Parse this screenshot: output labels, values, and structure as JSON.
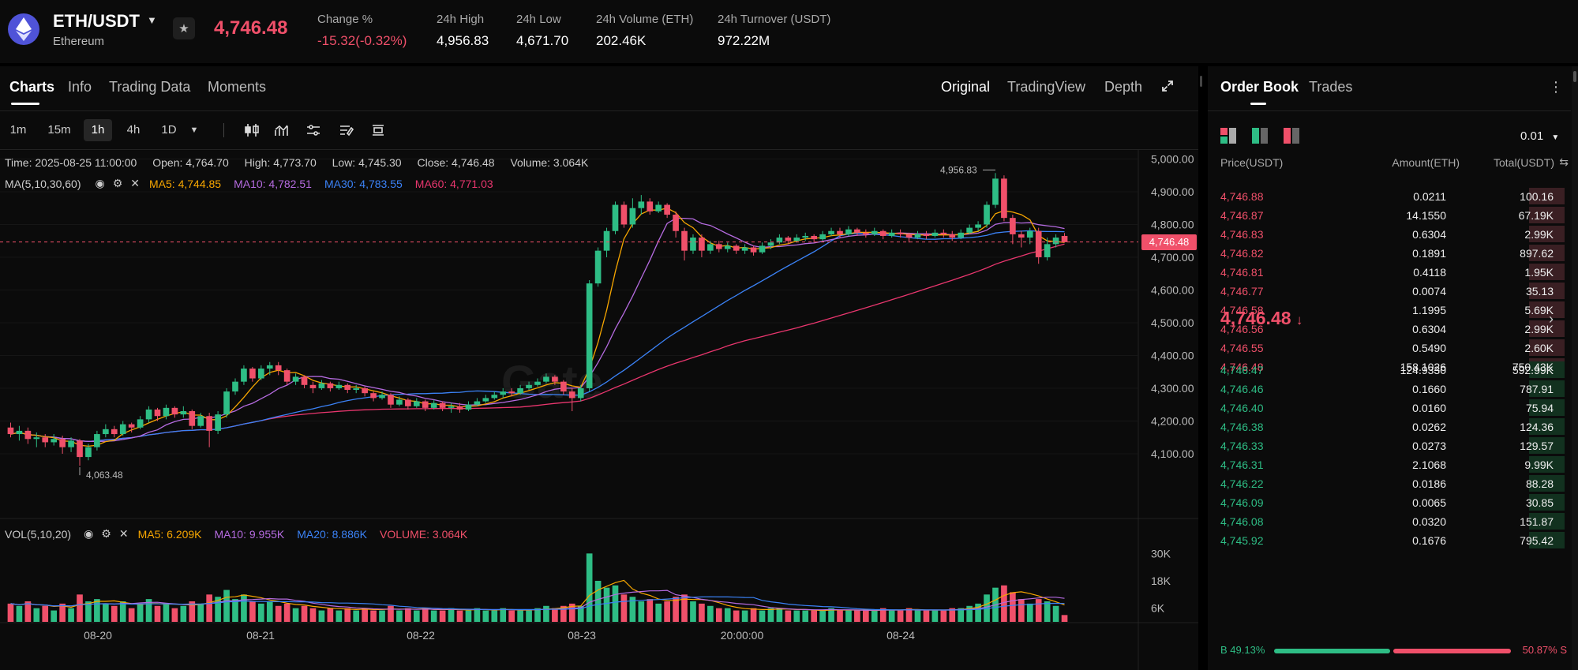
{
  "header": {
    "pair": "ETH/USDT",
    "name": "Ethereum",
    "price": "4,746.48",
    "stats": [
      {
        "label": "Change %",
        "value": "-15.32(-0.32%)",
        "tone": "red"
      },
      {
        "label": "24h High",
        "value": "4,956.83",
        "tone": "white"
      },
      {
        "label": "24h Low",
        "value": "4,671.70",
        "tone": "white"
      },
      {
        "label": "24h Volume (ETH)",
        "value": "202.46K",
        "tone": "white"
      },
      {
        "label": "24h Turnover (USDT)",
        "value": "972.22M",
        "tone": "white"
      }
    ]
  },
  "chart_tabs": [
    "Charts",
    "Info",
    "Trading Data",
    "Moments"
  ],
  "view_tabs": [
    "Original",
    "TradingView",
    "Depth"
  ],
  "timeframes": [
    "1m",
    "15m",
    "1h",
    "4h",
    "1D"
  ],
  "active_timeframe": "1h",
  "icons": {
    "pair_caret": "caret-down-icon",
    "favorite": "star-icon",
    "fullscreen": "expand-icon",
    "timeframe_more": "caret-down-icon",
    "tools": [
      "candlestick-icon",
      "indicator-icon",
      "settings-sliders-icon",
      "drawing-icon",
      "layout-icon"
    ],
    "ob_menu": "more-vertical-icon",
    "ob_views": [
      "both-sides-icon",
      "bids-only-icon",
      "asks-only-icon"
    ]
  },
  "ohlc": {
    "time": "Time: 2025-08-25 11:00:00",
    "open": "Open: 4,764.70",
    "high": "High: 4,773.70",
    "low": "Low: 4,745.30",
    "close": "Close: 4,746.48",
    "volume": "Volume: 3.064K"
  },
  "ma_legend": {
    "title": "MA(5,10,30,60)",
    "items": [
      {
        "text": "MA5: 4,744.85",
        "color": "#f7a600"
      },
      {
        "text": "MA10: 4,782.51",
        "color": "#b56be0"
      },
      {
        "text": "MA30: 4,783.55",
        "color": "#3b82f6"
      },
      {
        "text": "MA60: 4,771.03",
        "color": "#e9366e"
      }
    ]
  },
  "vol_legend": {
    "title": "VOL(5,10,20)",
    "items": [
      {
        "text": "MA5: 6.209K",
        "color": "#f7a600"
      },
      {
        "text": "MA10: 9.955K",
        "color": "#b56be0"
      },
      {
        "text": "MA20: 8.886K",
        "color": "#3b82f6"
      },
      {
        "text": "VOLUME: 3.064K",
        "color": "#f0506a"
      }
    ]
  },
  "watermark": "Gate",
  "chart_data": {
    "type": "candlestick",
    "interval": "1h",
    "price_axis": {
      "ticks": [
        "5,000.00",
        "4,900.00",
        "4,800.00",
        "4,700.00",
        "4,600.00",
        "4,500.00",
        "4,400.00",
        "4,300.00",
        "4,200.00",
        "4,100.00"
      ],
      "range": [
        4030,
        5030
      ]
    },
    "volume_axis": {
      "ticks": [
        "30K",
        "18K",
        "6K"
      ],
      "range": [
        0,
        36000
      ]
    },
    "x_labels": [
      "08-20",
      "08-21",
      "08-22",
      "08-23",
      "20:00:00",
      "08-24"
    ],
    "current_price": "4,746.48",
    "current_price_value": 4746.48,
    "high_marker": {
      "text": "4,956.83",
      "value": 4956.83
    },
    "low_marker": {
      "text": "4,063.48",
      "value": 4063.48
    },
    "candles": [
      [
        4180,
        4160,
        4150,
        4195,
        8
      ],
      [
        4160,
        4170,
        4140,
        4185,
        7
      ],
      [
        4170,
        4145,
        4130,
        4180,
        9
      ],
      [
        4145,
        4150,
        4120,
        4165,
        6
      ],
      [
        4150,
        4135,
        4120,
        4160,
        7
      ],
      [
        4135,
        4145,
        4125,
        4160,
        5
      ],
      [
        4145,
        4120,
        4100,
        4155,
        8
      ],
      [
        4120,
        4140,
        4105,
        4150,
        6
      ],
      [
        4140,
        4090,
        4063,
        4145,
        12
      ],
      [
        4090,
        4120,
        4080,
        4130,
        9
      ],
      [
        4120,
        4160,
        4110,
        4170,
        10
      ],
      [
        4160,
        4175,
        4150,
        4190,
        8
      ],
      [
        4175,
        4160,
        4150,
        4185,
        7
      ],
      [
        4160,
        4190,
        4155,
        4200,
        9
      ],
      [
        4190,
        4180,
        4165,
        4195,
        6
      ],
      [
        4180,
        4205,
        4175,
        4215,
        8
      ],
      [
        4205,
        4235,
        4195,
        4245,
        10
      ],
      [
        4235,
        4215,
        4200,
        4240,
        7
      ],
      [
        4215,
        4240,
        4205,
        4250,
        8
      ],
      [
        4240,
        4220,
        4210,
        4245,
        6
      ],
      [
        4220,
        4230,
        4210,
        4245,
        7
      ],
      [
        4230,
        4185,
        4175,
        4235,
        9
      ],
      [
        4185,
        4215,
        4180,
        4225,
        8
      ],
      [
        4215,
        4170,
        4120,
        4225,
        12
      ],
      [
        4170,
        4220,
        4160,
        4230,
        11
      ],
      [
        4220,
        4290,
        4210,
        4300,
        14
      ],
      [
        4290,
        4320,
        4280,
        4330,
        10
      ],
      [
        4320,
        4360,
        4310,
        4370,
        12
      ],
      [
        4360,
        4330,
        4320,
        4365,
        9
      ],
      [
        4330,
        4360,
        4325,
        4370,
        8
      ],
      [
        4360,
        4370,
        4340,
        4380,
        9
      ],
      [
        4370,
        4355,
        4340,
        4380,
        7
      ],
      [
        4355,
        4320,
        4310,
        4360,
        8
      ],
      [
        4320,
        4335,
        4310,
        4345,
        6
      ],
      [
        4335,
        4310,
        4300,
        4340,
        7
      ],
      [
        4310,
        4300,
        4285,
        4320,
        6
      ],
      [
        4300,
        4315,
        4295,
        4325,
        5
      ],
      [
        4315,
        4300,
        4290,
        4320,
        6
      ],
      [
        4300,
        4310,
        4295,
        4320,
        5
      ],
      [
        4310,
        4295,
        4285,
        4315,
        6
      ],
      [
        4295,
        4300,
        4285,
        4310,
        5
      ],
      [
        4300,
        4285,
        4275,
        4305,
        6
      ],
      [
        4285,
        4270,
        4260,
        4290,
        5
      ],
      [
        4270,
        4280,
        4265,
        4290,
        5
      ],
      [
        4280,
        4250,
        4240,
        4285,
        7
      ],
      [
        4250,
        4265,
        4245,
        4275,
        5
      ],
      [
        4265,
        4245,
        4235,
        4270,
        6
      ],
      [
        4245,
        4260,
        4240,
        4270,
        5
      ],
      [
        4260,
        4240,
        4230,
        4265,
        6
      ],
      [
        4240,
        4255,
        4235,
        4265,
        5
      ],
      [
        4255,
        4240,
        4230,
        4260,
        5
      ],
      [
        4240,
        4245,
        4225,
        4255,
        6
      ],
      [
        4245,
        4235,
        4225,
        4255,
        5
      ],
      [
        4235,
        4250,
        4230,
        4260,
        5
      ],
      [
        4250,
        4260,
        4245,
        4270,
        6
      ],
      [
        4260,
        4270,
        4255,
        4280,
        5
      ],
      [
        4270,
        4280,
        4265,
        4290,
        5
      ],
      [
        4280,
        4290,
        4270,
        4300,
        6
      ],
      [
        4290,
        4285,
        4275,
        4300,
        5
      ],
      [
        4285,
        4300,
        4280,
        4310,
        5
      ],
      [
        4300,
        4310,
        4295,
        4320,
        5
      ],
      [
        4310,
        4320,
        4305,
        4330,
        6
      ],
      [
        4320,
        4335,
        4315,
        4345,
        7
      ],
      [
        4335,
        4320,
        4310,
        4340,
        6
      ],
      [
        4320,
        4290,
        4280,
        4325,
        7
      ],
      [
        4290,
        4270,
        4230,
        4300,
        8
      ],
      [
        4270,
        4300,
        4260,
        4310,
        7
      ],
      [
        4300,
        4620,
        4290,
        4630,
        30
      ],
      [
        4620,
        4720,
        4610,
        4730,
        18
      ],
      [
        4720,
        4780,
        4700,
        4790,
        15
      ],
      [
        4780,
        4860,
        4770,
        4870,
        16
      ],
      [
        4860,
        4800,
        4790,
        4870,
        12
      ],
      [
        4800,
        4850,
        4790,
        4880,
        11
      ],
      [
        4850,
        4870,
        4830,
        4890,
        9
      ],
      [
        4870,
        4840,
        4830,
        4880,
        10
      ],
      [
        4840,
        4860,
        4835,
        4870,
        8
      ],
      [
        4860,
        4830,
        4820,
        4865,
        9
      ],
      [
        4830,
        4780,
        4760,
        4840,
        11
      ],
      [
        4780,
        4720,
        4690,
        4790,
        12
      ],
      [
        4720,
        4760,
        4710,
        4770,
        9
      ],
      [
        4760,
        4720,
        4700,
        4770,
        8
      ],
      [
        4720,
        4740,
        4710,
        4750,
        7
      ],
      [
        4740,
        4725,
        4715,
        4750,
        6
      ],
      [
        4725,
        4735,
        4715,
        4745,
        6
      ],
      [
        4735,
        4720,
        4710,
        4740,
        5
      ],
      [
        4720,
        4730,
        4710,
        4740,
        5
      ],
      [
        4730,
        4715,
        4705,
        4735,
        6
      ],
      [
        4715,
        4735,
        4710,
        4745,
        5
      ],
      [
        4735,
        4745,
        4725,
        4755,
        6
      ],
      [
        4745,
        4760,
        4740,
        4770,
        6
      ],
      [
        4760,
        4750,
        4740,
        4765,
        5
      ],
      [
        4750,
        4760,
        4745,
        4770,
        5
      ],
      [
        4760,
        4765,
        4750,
        4775,
        5
      ],
      [
        4765,
        4755,
        4745,
        4770,
        5
      ],
      [
        4755,
        4770,
        4750,
        4780,
        5
      ],
      [
        4770,
        4780,
        4765,
        4790,
        6
      ],
      [
        4780,
        4770,
        4760,
        4790,
        5
      ],
      [
        4770,
        4785,
        4765,
        4795,
        5
      ],
      [
        4785,
        4775,
        4765,
        4790,
        5
      ],
      [
        4775,
        4770,
        4760,
        4785,
        5
      ],
      [
        4770,
        4780,
        4765,
        4790,
        5
      ],
      [
        4780,
        4765,
        4755,
        4785,
        6
      ],
      [
        4765,
        4775,
        4760,
        4785,
        5
      ],
      [
        4775,
        4770,
        4760,
        4785,
        5
      ],
      [
        4770,
        4760,
        4745,
        4775,
        6
      ],
      [
        4760,
        4770,
        4755,
        4780,
        5
      ],
      [
        4770,
        4765,
        4755,
        4780,
        5
      ],
      [
        4765,
        4775,
        4760,
        4785,
        5
      ],
      [
        4775,
        4770,
        4760,
        4785,
        5
      ],
      [
        4770,
        4760,
        4750,
        4780,
        6
      ],
      [
        4760,
        4775,
        4755,
        4785,
        6
      ],
      [
        4775,
        4790,
        4770,
        4800,
        7
      ],
      [
        4790,
        4800,
        4780,
        4810,
        8
      ],
      [
        4800,
        4860,
        4790,
        4870,
        12
      ],
      [
        4860,
        4940,
        4850,
        4957,
        15
      ],
      [
        4940,
        4820,
        4810,
        4950,
        16
      ],
      [
        4820,
        4770,
        4740,
        4830,
        13
      ],
      [
        4770,
        4760,
        4730,
        4780,
        10
      ],
      [
        4760,
        4780,
        4740,
        4790,
        8
      ],
      [
        4780,
        4700,
        4680,
        4790,
        10
      ],
      [
        4700,
        4740,
        4690,
        4760,
        9
      ],
      [
        4740,
        4760,
        4730,
        4770,
        7
      ],
      [
        4765,
        4746,
        4745,
        4774,
        3
      ]
    ],
    "volume_ma": {
      "ma5": 6209,
      "ma10": 9955,
      "ma20": 8886,
      "last": 3064
    }
  },
  "order_book": {
    "tabs": [
      "Order Book",
      "Trades"
    ],
    "precision": "0.01",
    "headers": [
      "Price(USDT)",
      "Amount(ETH)",
      "Total(USDT)"
    ],
    "asks": [
      {
        "price": "4,746.88",
        "amount": "0.0211",
        "total": "100.16",
        "depth": 0.45
      },
      {
        "price": "4,746.87",
        "amount": "14.1550",
        "total": "67.19K",
        "depth": 0.45
      },
      {
        "price": "4,746.83",
        "amount": "0.6304",
        "total": "2.99K",
        "depth": 0.45
      },
      {
        "price": "4,746.82",
        "amount": "0.1891",
        "total": "897.62",
        "depth": 0.45
      },
      {
        "price": "4,746.81",
        "amount": "0.4118",
        "total": "1.95K",
        "depth": 0.45
      },
      {
        "price": "4,746.77",
        "amount": "0.0074",
        "total": "35.13",
        "depth": 0.45
      },
      {
        "price": "4,746.58",
        "amount": "1.1995",
        "total": "5.69K",
        "depth": 0.45
      },
      {
        "price": "4,746.56",
        "amount": "0.6304",
        "total": "2.99K",
        "depth": 0.45
      },
      {
        "price": "4,746.55",
        "amount": "0.5490",
        "total": "2.60K",
        "depth": 0.45
      },
      {
        "price": "4,746.48",
        "amount": "158.1026",
        "total": "750.43K",
        "depth": 0.45
      }
    ],
    "mid_price": "4,746.48",
    "bids": [
      {
        "price": "4,746.47",
        "amount": "124.9330",
        "total": "592.99K",
        "depth": 0.45
      },
      {
        "price": "4,746.46",
        "amount": "0.1660",
        "total": "787.91",
        "depth": 0.45
      },
      {
        "price": "4,746.40",
        "amount": "0.0160",
        "total": "75.94",
        "depth": 0.45
      },
      {
        "price": "4,746.38",
        "amount": "0.0262",
        "total": "124.36",
        "depth": 0.45
      },
      {
        "price": "4,746.33",
        "amount": "0.0273",
        "total": "129.57",
        "depth": 0.45
      },
      {
        "price": "4,746.31",
        "amount": "2.1068",
        "total": "9.99K",
        "depth": 0.45
      },
      {
        "price": "4,746.22",
        "amount": "0.0186",
        "total": "88.28",
        "depth": 0.45
      },
      {
        "price": "4,746.09",
        "amount": "0.0065",
        "total": "30.85",
        "depth": 0.45
      },
      {
        "price": "4,746.08",
        "amount": "0.0320",
        "total": "151.87",
        "depth": 0.45
      },
      {
        "price": "4,745.92",
        "amount": "0.1676",
        "total": "795.42",
        "depth": 0.45
      }
    ],
    "buy_ratio": "B 49.13%",
    "sell_ratio": "50.87% S",
    "buy_fraction": 0.4913
  },
  "colors": {
    "up": "#2ebd85",
    "down": "#f0506a",
    "accent": "#f0506a"
  }
}
